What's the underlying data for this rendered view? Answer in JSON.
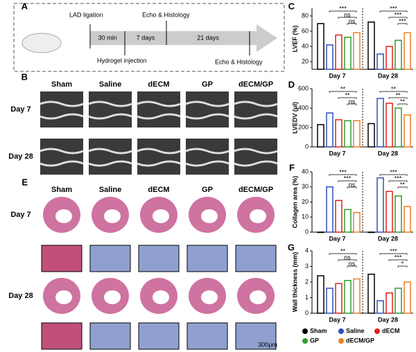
{
  "figure": {
    "panel_labels": [
      "A",
      "B",
      "C",
      "D",
      "E",
      "F",
      "G"
    ],
    "timeline": {
      "ligation": "LAD ligation",
      "intervals": [
        "30 min",
        "7 days",
        "21 days"
      ],
      "echo": "Echo & Histology",
      "injection": "Hydrogel injection"
    },
    "groups": [
      "Sham",
      "Saline",
      "dECM",
      "GP",
      "dECM/GP"
    ],
    "days": [
      "Day 7",
      "Day 28"
    ],
    "scale_bar": "300μm"
  },
  "chart_data": [
    {
      "type": "bar",
      "ylabel": "LVEF (%)",
      "categories": [
        "Day 7",
        "Day 28"
      ],
      "ylim": [
        10,
        90
      ],
      "yticks": [
        20,
        40,
        60,
        80
      ],
      "significance": [
        [
          "***",
          "ns",
          "ns"
        ],
        [
          "***",
          "***",
          "***"
        ]
      ],
      "series": [
        {
          "name": "Sham",
          "color": "#000000",
          "values": [
            70,
            72
          ]
        },
        {
          "name": "Saline",
          "color": "#2e4fbf",
          "values": [
            42,
            30
          ]
        },
        {
          "name": "dECM",
          "color": "#e02020",
          "values": [
            55,
            40
          ]
        },
        {
          "name": "GP",
          "color": "#2ca02c",
          "values": [
            52,
            48
          ]
        },
        {
          "name": "dECM/GP",
          "color": "#f07f20",
          "values": [
            58,
            58
          ]
        }
      ]
    },
    {
      "type": "bar",
      "ylabel": "LVEDV (μl)",
      "categories": [
        "Day 7",
        "Day 28"
      ],
      "ylim": [
        0,
        600
      ],
      "yticks": [
        0,
        200,
        400,
        600
      ],
      "significance": [
        [
          "**",
          "**",
          "ns"
        ],
        [
          "**",
          "**",
          "**"
        ]
      ],
      "series": [
        {
          "name": "Sham",
          "color": "#000000",
          "values": [
            230,
            240
          ]
        },
        {
          "name": "Saline",
          "color": "#2e4fbf",
          "values": [
            350,
            500
          ]
        },
        {
          "name": "dECM",
          "color": "#e02020",
          "values": [
            280,
            450
          ]
        },
        {
          "name": "GP",
          "color": "#2ca02c",
          "values": [
            270,
            400
          ]
        },
        {
          "name": "dECM/GP",
          "color": "#f07f20",
          "values": [
            270,
            330
          ]
        }
      ]
    },
    {
      "type": "bar",
      "ylabel": "Collagen area (%)",
      "categories": [
        "Day 7",
        "Day 28"
      ],
      "ylim": [
        0,
        40
      ],
      "yticks": [
        0,
        10,
        20,
        30,
        40
      ],
      "significance": [
        [
          "***",
          "***",
          "ns"
        ],
        [
          "***",
          "***",
          "**"
        ]
      ],
      "series": [
        {
          "name": "Sham",
          "color": "#000000",
          "values": [
            0,
            0
          ]
        },
        {
          "name": "Saline",
          "color": "#2e4fbf",
          "values": [
            30,
            36
          ]
        },
        {
          "name": "dECM",
          "color": "#e02020",
          "values": [
            21,
            27
          ]
        },
        {
          "name": "GP",
          "color": "#2ca02c",
          "values": [
            15,
            24
          ]
        },
        {
          "name": "dECM/GP",
          "color": "#f07f20",
          "values": [
            13,
            17
          ]
        }
      ]
    },
    {
      "type": "bar",
      "ylabel": "Wall thickness (mm)",
      "categories": [
        "Day 7",
        "Day 28"
      ],
      "ylim": [
        0,
        4
      ],
      "yticks": [
        0,
        1,
        2,
        3,
        4
      ],
      "significance": [
        [
          "**",
          "ns",
          "ns"
        ],
        [
          "***",
          "***",
          "*"
        ]
      ],
      "series": [
        {
          "name": "Sham",
          "color": "#000000",
          "values": [
            2.4,
            2.5
          ]
        },
        {
          "name": "Saline",
          "color": "#2e4fbf",
          "values": [
            1.6,
            0.8
          ]
        },
        {
          "name": "dECM",
          "color": "#e02020",
          "values": [
            1.9,
            1.3
          ]
        },
        {
          "name": "GP",
          "color": "#2ca02c",
          "values": [
            2.1,
            1.6
          ]
        },
        {
          "name": "dECM/GP",
          "color": "#f07f20",
          "values": [
            2.2,
            2.0
          ]
        }
      ]
    }
  ]
}
